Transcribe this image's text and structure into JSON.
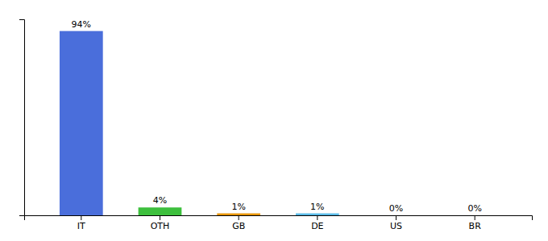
{
  "chart_data": {
    "type": "bar",
    "categories": [
      "IT",
      "OTH",
      "GB",
      "DE",
      "US",
      "BR"
    ],
    "values": [
      94,
      4,
      1,
      1,
      0,
      0
    ],
    "value_labels": [
      "94%",
      "4%",
      "1%",
      "1%",
      "0%",
      "0%"
    ],
    "colors": [
      "#4a6edb",
      "#3dbf3d",
      "#e8960a",
      "#5bbce8",
      "#c8c8c8",
      "#c8c8c8"
    ],
    "ylim": [
      0,
      100
    ],
    "data_labels": true,
    "tick_labels": "x",
    "grid": false
  }
}
